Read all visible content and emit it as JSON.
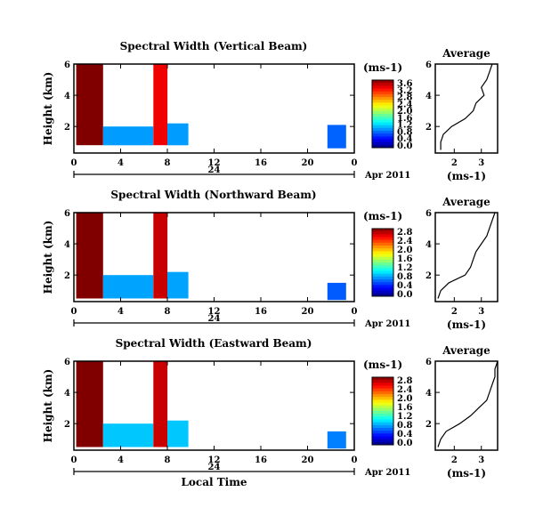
{
  "chart_data": [
    {
      "type": "heatmap",
      "title": "Spectral Width (Vertical Beam)",
      "ylabel": "Height (km)",
      "x_ticks": [
        "0",
        "4",
        "8",
        "12",
        "16",
        "20",
        "0"
      ],
      "xlim": [
        0,
        24
      ],
      "ylim": [
        0.3,
        6
      ],
      "y_ticks": [
        "2",
        "4",
        "6"
      ],
      "date_mark": "24",
      "date_label": "Apr 2011",
      "colorbar": {
        "unit": "(ms-1)",
        "ticks": [
          "3.6",
          "3.2",
          "2.8",
          "2.4",
          "2.0",
          "1.6",
          "1.2",
          "0.8",
          "0.4",
          "0.0"
        ],
        "range": [
          0,
          3.6
        ]
      },
      "data_regions": [
        {
          "t": [
            0.2,
            2.5
          ],
          "h": [
            0.8,
            6.0
          ],
          "value": 3.6
        },
        {
          "t": [
            2.5,
            6.8
          ],
          "h": [
            0.8,
            2.0
          ],
          "value": 1.0
        },
        {
          "t": [
            6.8,
            8.0
          ],
          "h": [
            0.8,
            6.0
          ],
          "value": 3.2
        },
        {
          "t": [
            8.0,
            9.8
          ],
          "h": [
            0.8,
            2.2
          ],
          "value": 1.0
        },
        {
          "t": [
            21.7,
            23.3
          ],
          "h": [
            0.6,
            2.1
          ],
          "value": 0.8
        }
      ],
      "average": {
        "title": "Average",
        "xlabel": "(ms-1)",
        "x_ticks": [
          "2",
          "3"
        ],
        "xlim": [
          1.3,
          3.6
        ],
        "y_ticks": [
          "2",
          "4",
          "6"
        ],
        "ylim": [
          0.3,
          6
        ],
        "profile": [
          [
            0.5,
            1.5
          ],
          [
            1.0,
            1.5
          ],
          [
            1.5,
            1.6
          ],
          [
            2.0,
            1.9
          ],
          [
            2.5,
            2.4
          ],
          [
            3.0,
            2.7
          ],
          [
            3.5,
            2.8
          ],
          [
            4.0,
            3.1
          ],
          [
            4.5,
            3.0
          ],
          [
            5.0,
            3.2
          ],
          [
            5.5,
            3.3
          ],
          [
            6.0,
            3.4
          ]
        ]
      }
    },
    {
      "type": "heatmap",
      "title": "Spectral Width (Northward Beam)",
      "ylabel": "Height (km)",
      "x_ticks": [
        "0",
        "4",
        "8",
        "12",
        "16",
        "20",
        "0"
      ],
      "xlim": [
        0,
        24
      ],
      "ylim": [
        0.3,
        6
      ],
      "y_ticks": [
        "2",
        "4",
        "6"
      ],
      "date_mark": "24",
      "date_label": "Apr 2011",
      "colorbar": {
        "unit": "(ms-1)",
        "ticks": [
          "2.8",
          "2.4",
          "2.0",
          "1.6",
          "1.2",
          "0.8",
          "0.4",
          "0.0"
        ],
        "range": [
          0,
          2.8
        ]
      },
      "data_regions": [
        {
          "t": [
            0.2,
            2.5
          ],
          "h": [
            0.5,
            6.0
          ],
          "value": 2.8
        },
        {
          "t": [
            2.5,
            6.8
          ],
          "h": [
            0.5,
            2.0
          ],
          "value": 0.8
        },
        {
          "t": [
            6.8,
            8.0
          ],
          "h": [
            0.5,
            6.0
          ],
          "value": 2.6
        },
        {
          "t": [
            8.0,
            9.8
          ],
          "h": [
            0.5,
            2.2
          ],
          "value": 0.8
        },
        {
          "t": [
            21.7,
            23.3
          ],
          "h": [
            0.4,
            1.5
          ],
          "value": 0.6
        }
      ],
      "average": {
        "title": "Average",
        "xlabel": "(ms-1)",
        "x_ticks": [
          "2",
          "3"
        ],
        "xlim": [
          1.3,
          3.6
        ],
        "y_ticks": [
          "2",
          "4",
          "6"
        ],
        "ylim": [
          0.3,
          6
        ],
        "profile": [
          [
            0.5,
            1.4
          ],
          [
            1.0,
            1.5
          ],
          [
            1.5,
            1.8
          ],
          [
            2.0,
            2.4
          ],
          [
            2.5,
            2.6
          ],
          [
            3.0,
            2.7
          ],
          [
            3.5,
            2.8
          ],
          [
            4.0,
            3.0
          ],
          [
            4.5,
            3.2
          ],
          [
            5.0,
            3.3
          ],
          [
            5.5,
            3.4
          ],
          [
            6.0,
            3.5
          ]
        ]
      }
    },
    {
      "type": "heatmap",
      "title": "Spectral Width (Eastward Beam)",
      "ylabel": "Height (km)",
      "xlabel": "Local Time",
      "x_ticks": [
        "0",
        "4",
        "8",
        "12",
        "16",
        "20",
        "0"
      ],
      "xlim": [
        0,
        24
      ],
      "ylim": [
        0.3,
        6
      ],
      "y_ticks": [
        "2",
        "4",
        "6"
      ],
      "date_mark": "24",
      "date_label": "Apr 2011",
      "colorbar": {
        "unit": "(ms-1)",
        "ticks": [
          "2.8",
          "2.4",
          "2.0",
          "1.6",
          "1.2",
          "0.8",
          "0.4",
          "0.0"
        ],
        "range": [
          0,
          2.8
        ]
      },
      "data_regions": [
        {
          "t": [
            0.2,
            2.5
          ],
          "h": [
            0.5,
            6.0
          ],
          "value": 2.8
        },
        {
          "t": [
            2.5,
            6.8
          ],
          "h": [
            0.5,
            2.0
          ],
          "value": 0.9
        },
        {
          "t": [
            6.8,
            8.0
          ],
          "h": [
            0.5,
            6.0
          ],
          "value": 2.6
        },
        {
          "t": [
            8.0,
            9.8
          ],
          "h": [
            0.5,
            2.2
          ],
          "value": 0.9
        },
        {
          "t": [
            21.7,
            23.3
          ],
          "h": [
            0.4,
            1.5
          ],
          "value": 0.7
        }
      ],
      "average": {
        "title": "Average",
        "xlabel": "(ms-1)",
        "x_ticks": [
          "2",
          "3"
        ],
        "xlim": [
          1.3,
          3.6
        ],
        "y_ticks": [
          "2",
          "4",
          "6"
        ],
        "ylim": [
          0.3,
          6
        ],
        "profile": [
          [
            0.5,
            1.4
          ],
          [
            1.0,
            1.5
          ],
          [
            1.5,
            1.7
          ],
          [
            2.0,
            2.2
          ],
          [
            2.5,
            2.6
          ],
          [
            3.0,
            2.9
          ],
          [
            3.5,
            3.2
          ],
          [
            4.0,
            3.3
          ],
          [
            4.5,
            3.4
          ],
          [
            5.0,
            3.5
          ],
          [
            5.5,
            3.5
          ],
          [
            6.0,
            3.6
          ]
        ]
      }
    }
  ]
}
